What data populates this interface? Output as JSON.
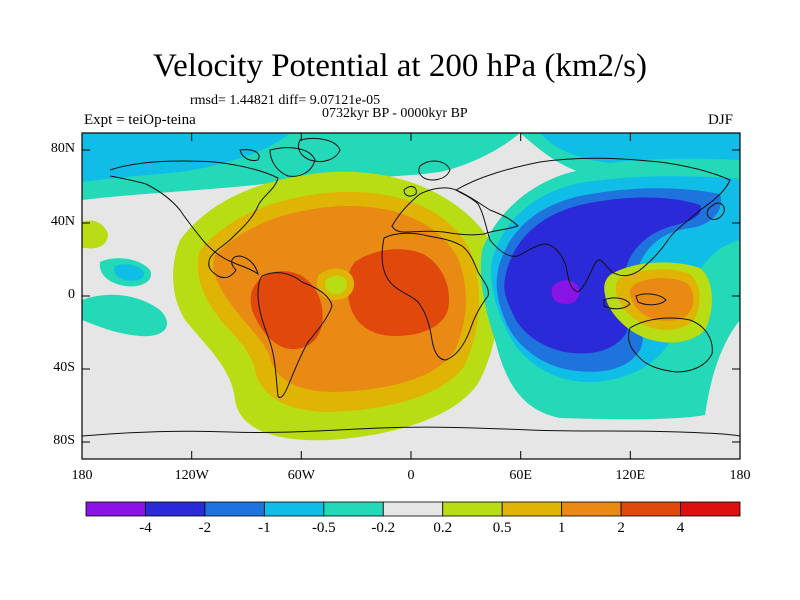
{
  "title": "Velocity Potential at 200 hPa (km2/s)",
  "stats": "rmsd= 1.44821 diff= 9.07121e-05",
  "period": "0732kyr BP - 0000kyr BP",
  "experiment": "Expt = teiOp-teina",
  "season": "DJF",
  "axes": {
    "lat_labels": [
      "80N",
      "40N",
      "0",
      "40S",
      "80S"
    ],
    "lon_labels": [
      "180",
      "120W",
      "60W",
      "0",
      "60E",
      "120E",
      "180"
    ]
  },
  "colorbar": {
    "labels": [
      "-4",
      "-2",
      "-1",
      "-0.5",
      "-0.2",
      "0.2",
      "0.5",
      "1",
      "2",
      "4"
    ],
    "colors": [
      "#8a14e6",
      "#2a2ad8",
      "#1f73dd",
      "#10bde6",
      "#24d9b8",
      "#e6e6e6",
      "#b9dd14",
      "#e0b404",
      "#e88a14",
      "#e0480c",
      "#dd1010"
    ]
  },
  "colors": {
    "neutral": "#e6e6e6",
    "coast": "#111111"
  }
}
